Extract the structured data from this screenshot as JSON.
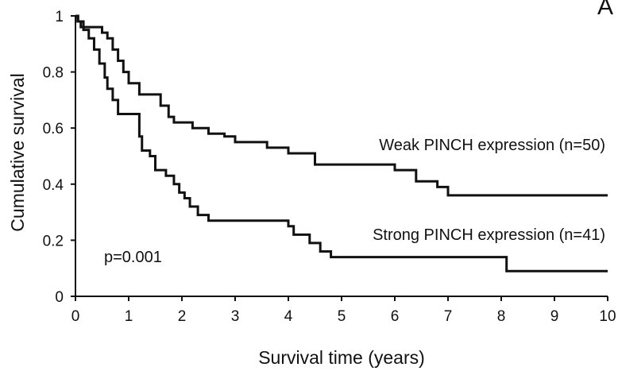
{
  "chart_data": {
    "type": "line",
    "xlabel": "Survival time (years)",
    "ylabel": "Cumulative survival",
    "xlim": [
      0,
      10
    ],
    "ylim": [
      0,
      1
    ],
    "x_ticks": [
      "0",
      "1",
      "2",
      "3",
      "4",
      "5",
      "6",
      "7",
      "8",
      "9",
      "10"
    ],
    "y_ticks": [
      "0",
      "0.2",
      "0.4",
      "0.6",
      "0.8",
      "1"
    ],
    "grid": false,
    "step": true,
    "series": [
      {
        "name": "Weak PINCH expression (n=50)",
        "x": [
          0,
          0.04,
          0.1,
          0.15,
          0.2,
          0.3,
          0.5,
          0.6,
          0.7,
          0.8,
          0.9,
          1.0,
          1.2,
          1.6,
          1.75,
          1.85,
          2.0,
          2.2,
          2.5,
          2.8,
          3.0,
          3.3,
          3.6,
          4.0,
          4.5,
          5.0,
          5.3,
          6.0,
          6.4,
          6.6,
          6.8,
          7.0,
          7.4,
          8.0,
          10.0
        ],
        "y": [
          1.0,
          0.98,
          0.96,
          0.96,
          0.96,
          0.96,
          0.94,
          0.92,
          0.88,
          0.84,
          0.8,
          0.76,
          0.72,
          0.68,
          0.64,
          0.62,
          0.62,
          0.6,
          0.58,
          0.57,
          0.55,
          0.55,
          0.53,
          0.51,
          0.47,
          0.47,
          0.47,
          0.45,
          0.41,
          0.41,
          0.39,
          0.36,
          0.36,
          0.36,
          0.36
        ]
      },
      {
        "name": "Strong PINCH expression (n=41)",
        "x": [
          0,
          0.05,
          0.15,
          0.25,
          0.35,
          0.45,
          0.55,
          0.6,
          0.7,
          0.8,
          1.0,
          1.2,
          1.25,
          1.4,
          1.5,
          1.7,
          1.85,
          1.95,
          2.05,
          2.15,
          2.3,
          2.5,
          2.9,
          3.0,
          4.0,
          4.1,
          4.4,
          4.6,
          4.8,
          5.0,
          6.0,
          7.0,
          8.1,
          10.0
        ],
        "y": [
          1.0,
          0.98,
          0.95,
          0.92,
          0.88,
          0.83,
          0.78,
          0.74,
          0.7,
          0.65,
          0.65,
          0.57,
          0.52,
          0.5,
          0.45,
          0.43,
          0.4,
          0.37,
          0.35,
          0.32,
          0.29,
          0.27,
          0.27,
          0.27,
          0.25,
          0.22,
          0.19,
          0.16,
          0.14,
          0.14,
          0.14,
          0.14,
          0.09,
          0.09
        ]
      }
    ],
    "annotations": [
      {
        "text": "p=0.001"
      },
      {
        "text": "A"
      }
    ],
    "colors": {
      "line": "#111111",
      "axis": "#111111"
    }
  }
}
